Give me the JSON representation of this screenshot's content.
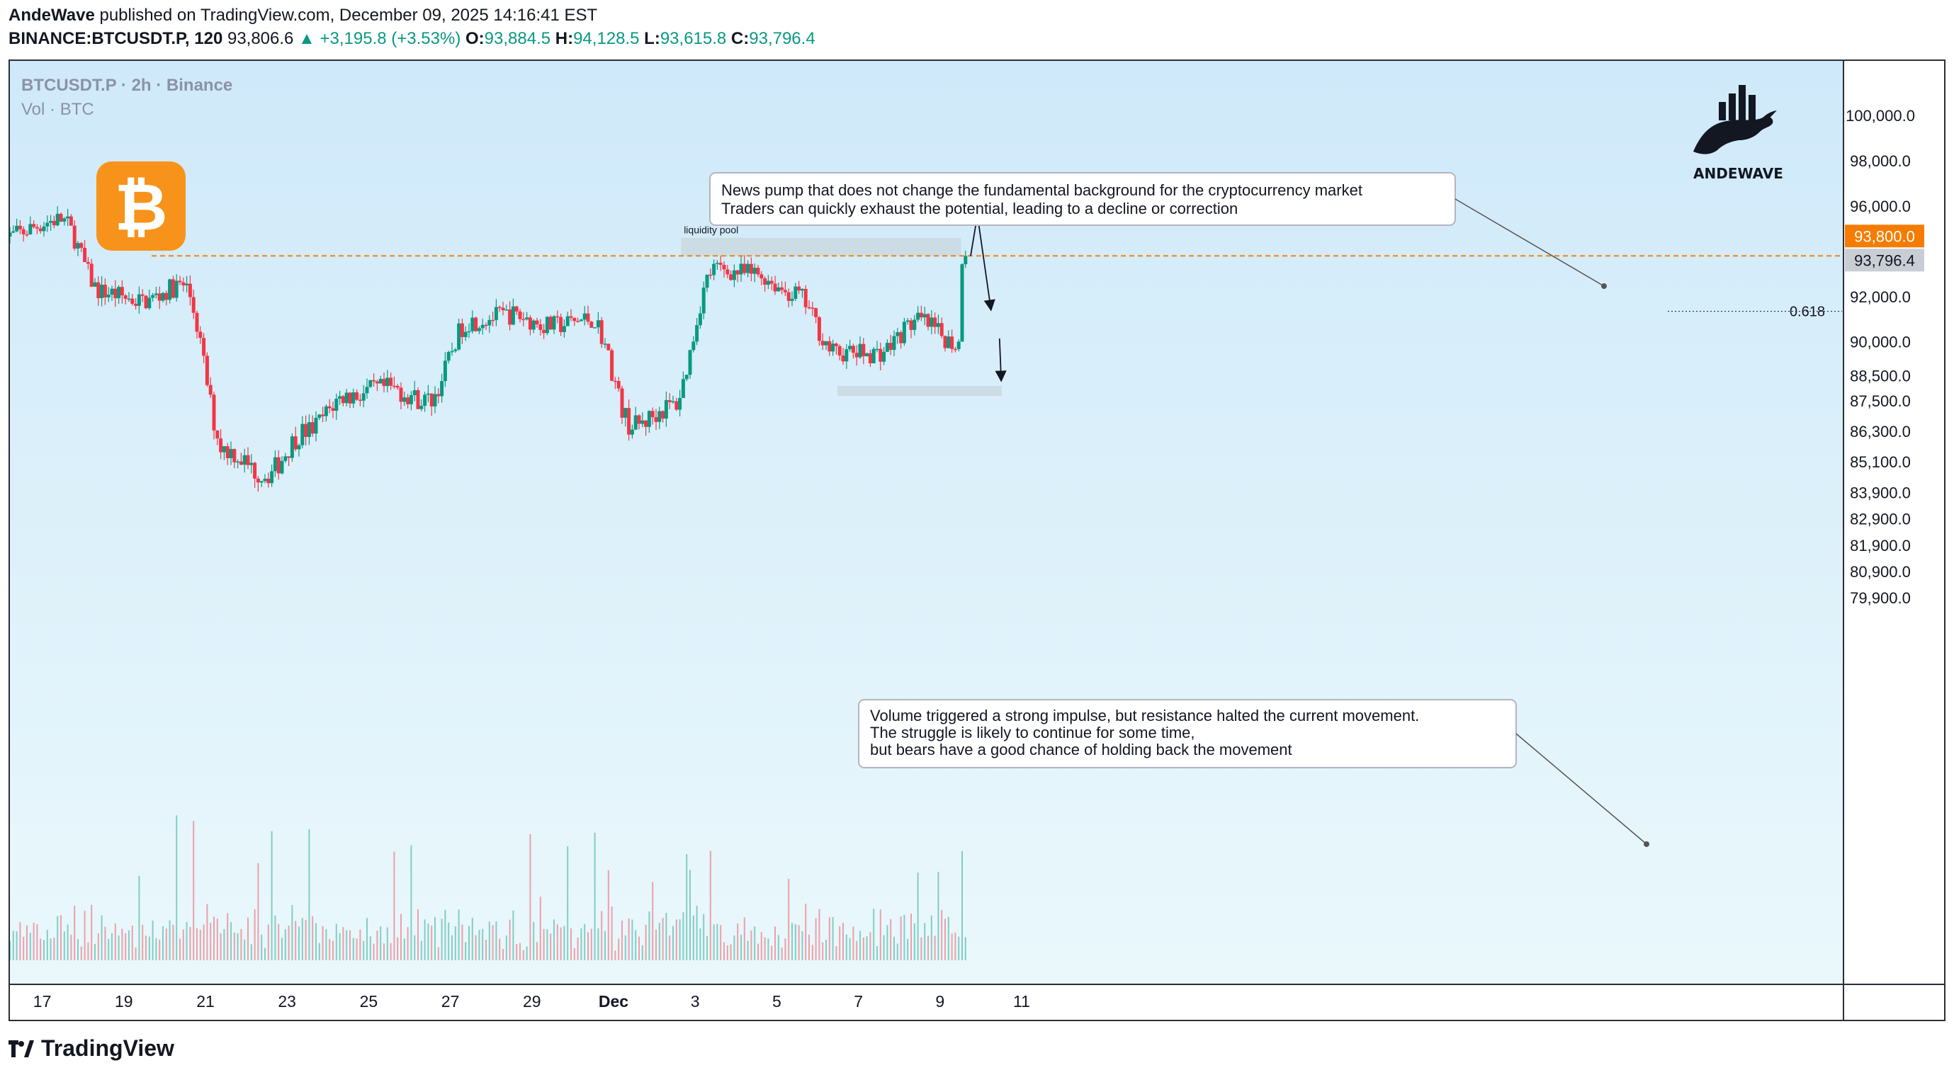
{
  "header": {
    "author": "AndeWave",
    "published": "published on TradingView.com, December 09, 2025 14:16:41 EST",
    "symbol": "BINANCE:BTCUSDT.P, 120",
    "last": "93,806.6",
    "change": "+3,195.8 (+3.53%)",
    "o_label": "O:",
    "o_value": "93,884.5",
    "h_label": "H:",
    "h_value": "94,128.5",
    "l_label": "L:",
    "l_value": "93,615.8",
    "c_label": "C:",
    "c_value": "93,796.4"
  },
  "legend": {
    "title": "BTCUSDT.P · 2h · Binance",
    "volume": "Vol · BTC"
  },
  "icons": {
    "coin": "bitcoin-icon",
    "logo": "andewave-bull-logo",
    "logo_text": "ANDEWAVE",
    "footer": "tradingview-logo"
  },
  "footer": {
    "brand": "TradingView"
  },
  "colors": {
    "up": "#089981",
    "down": "#F23645",
    "bg_top": "#CFE9FA",
    "bg_bottom": "#EAF8FB",
    "price_line": "#F57C00",
    "bitcoin": "#F7931A",
    "zone": "#C9D9E0"
  },
  "annotations": {
    "note_top": [
      "News pump that does not change the fundamental background for the cryptocurrency market",
      "Traders can quickly exhaust the potential, leading to a decline or correction"
    ],
    "note_bottom": [
      "Volume triggered a strong impulse, but resistance halted the current movement.",
      "The struggle is likely to continue for some time,",
      "but bears have a good chance of holding back the movement"
    ],
    "liquidity_label": "liquidity pool",
    "fib_label": "0.618",
    "price_tag_orange": "93,800.0",
    "price_tag_grey": "93,796.4"
  },
  "chart_data": {
    "type": "candlestick",
    "symbol": "BTCUSDT.P",
    "interval": "2h",
    "exchange": "Binance",
    "x_tick_labels": [
      "17",
      "19",
      "21",
      "23",
      "25",
      "27",
      "29",
      "Dec",
      "3",
      "5",
      "7",
      "9",
      "11"
    ],
    "y_tick_labels": [
      "100,000.0",
      "98,000.0",
      "96,000.0",
      "92,000.0",
      "90,000.0",
      "88,500.0",
      "87,500.0",
      "86,300.0",
      "85,100.0",
      "83,900.0",
      "82,900.0",
      "81,900.0",
      "80,900.0",
      "79,900.0"
    ],
    "price_anchors": [
      {
        "date": "2025-11-16",
        "price": 94600
      },
      {
        "date": "2025-11-17",
        "price": 95400
      },
      {
        "date": "2025-11-18",
        "price": 92200
      },
      {
        "date": "2025-11-19",
        "price": 91800
      },
      {
        "date": "2025-11-20",
        "price": 92500
      },
      {
        "date": "2025-11-21",
        "price": 85600
      },
      {
        "date": "2025-11-22",
        "price": 84600
      },
      {
        "date": "2025-11-23",
        "price": 86300
      },
      {
        "date": "2025-11-24",
        "price": 87700
      },
      {
        "date": "2025-11-25",
        "price": 88000
      },
      {
        "date": "2025-11-26",
        "price": 87500
      },
      {
        "date": "2025-11-27",
        "price": 90900
      },
      {
        "date": "2025-11-28",
        "price": 91200
      },
      {
        "date": "2025-11-29",
        "price": 90700
      },
      {
        "date": "2025-11-30",
        "price": 91000
      },
      {
        "date": "2025-12-01",
        "price": 86500
      },
      {
        "date": "2025-12-02",
        "price": 87300
      },
      {
        "date": "2025-12-03",
        "price": 93200
      },
      {
        "date": "2025-12-04",
        "price": 93000
      },
      {
        "date": "2025-12-05",
        "price": 92100
      },
      {
        "date": "2025-12-06",
        "price": 89500
      },
      {
        "date": "2025-12-07",
        "price": 89500
      },
      {
        "date": "2025-12-08",
        "price": 90900
      },
      {
        "date": "2025-12-09",
        "price": 89900
      },
      {
        "date": "2025-12-09T14:00",
        "price": 93796.4
      }
    ],
    "last_price": 93796.4,
    "current_price_line": 93800,
    "liquidity_pool": {
      "from": "2025-12-03",
      "to": "2025-12-10",
      "low": 93800,
      "high": 94600
    },
    "support_zone": {
      "from": "2025-12-06",
      "to": "2025-12-11",
      "low": 87700,
      "high": 88100
    },
    "fib_level": {
      "label": "0.618",
      "price": 91350
    },
    "projected_path": [
      {
        "date": "2025-12-09T18:00",
        "price": 93800
      },
      {
        "date": "2025-12-09T22:00",
        "price": 95600
      },
      {
        "date": "2025-12-10T06:00",
        "price": 91400
      },
      {
        "date": "2025-12-10T12:00",
        "price": 88300
      }
    ],
    "y_range": [
      79300,
      100700
    ],
    "x_range": [
      "2025-11-16",
      "2025-12-11"
    ],
    "grid": false,
    "legend": "top-left"
  }
}
